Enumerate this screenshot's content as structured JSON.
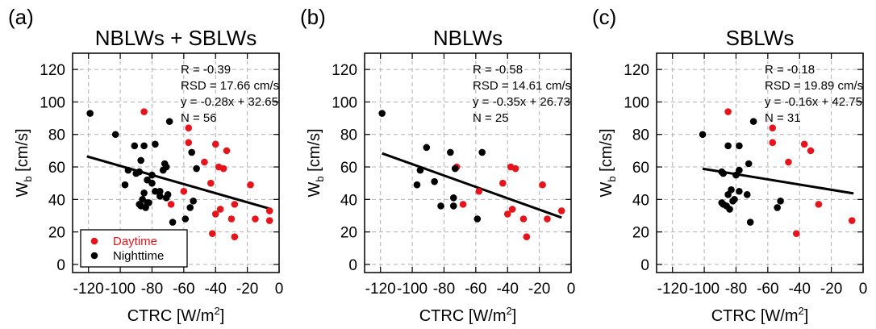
{
  "chart_data": [
    {
      "type": "scatter",
      "panel_label": "(a)",
      "title": "NBLWs + SBLWs",
      "xlabel_main": "CTRC [W/m",
      "xlabel_sup": "2",
      "xlabel_end": "]",
      "ylabel_main": "W",
      "ylabel_sub": "b",
      "ylabel_end": " [cm/s]",
      "xlim": [
        -130,
        0
      ],
      "ylim": [
        -5,
        130
      ],
      "xticks": [
        -120,
        -100,
        -80,
        -60,
        -40,
        -20,
        0
      ],
      "yticks": [
        0,
        20,
        40,
        60,
        80,
        100,
        120
      ],
      "grid": true,
      "stats": [
        "R = -0.39",
        "RSD = 17.66 cm/s",
        "y = -0.28x + 32.65",
        "N =  56"
      ],
      "fit": {
        "slope": -0.28,
        "intercept": 32.65,
        "x": [
          -121,
          -5
        ]
      },
      "legend": {
        "position": "bottom-left",
        "entries": [
          {
            "label": "Daytime",
            "color": "#e8141b"
          },
          {
            "label": "Nighttime",
            "color": "#000000"
          }
        ]
      },
      "series": [
        {
          "name": "Daytime",
          "color": "#e8141b",
          "points": [
            [
              -85,
              94
            ],
            [
              -57,
              84
            ],
            [
              -57,
              75
            ],
            [
              -40,
              74
            ],
            [
              -33,
              70
            ],
            [
              -38,
              60
            ],
            [
              -35,
              59
            ],
            [
              -47,
              63
            ],
            [
              -60,
              45
            ],
            [
              -43,
              50
            ],
            [
              -37,
              34
            ],
            [
              -40,
              31
            ],
            [
              -30,
              28
            ],
            [
              -28,
              37
            ],
            [
              -18,
              49
            ],
            [
              -15,
              28
            ],
            [
              -28,
              17
            ],
            [
              -42,
              19
            ],
            [
              -6,
              33
            ],
            [
              -6,
              27
            ],
            [
              -68,
              37
            ]
          ]
        },
        {
          "name": "Nighttime",
          "color": "#000000",
          "points": [
            [
              -119,
              93
            ],
            [
              -103,
              80
            ],
            [
              -91,
              73
            ],
            [
              -85,
              73
            ],
            [
              -78,
              74
            ],
            [
              -87,
              64
            ],
            [
              -72,
              62
            ],
            [
              -95,
              58
            ],
            [
              -88,
              57
            ],
            [
              -90,
              56
            ],
            [
              -80,
              55
            ],
            [
              -73,
              58
            ],
            [
              -71,
              60
            ],
            [
              -69,
              88
            ],
            [
              -55,
              69
            ],
            [
              -52,
              59
            ],
            [
              -97,
              49
            ],
            [
              -83,
              52
            ],
            [
              -78,
              45
            ],
            [
              -85,
              44
            ],
            [
              -86,
              40
            ],
            [
              -83,
              38
            ],
            [
              -87,
              36
            ],
            [
              -84,
              35
            ],
            [
              -82,
              38
            ],
            [
              -88,
              37
            ],
            [
              -75,
              42
            ],
            [
              -70,
              43
            ],
            [
              -71,
              41
            ],
            [
              -54,
              39
            ],
            [
              -56,
              35
            ],
            [
              -59,
              28
            ],
            [
              -67,
              26
            ],
            [
              -75,
              45
            ],
            [
              -80,
              50
            ]
          ]
        }
      ]
    },
    {
      "type": "scatter",
      "panel_label": "(b)",
      "title": "NBLWs",
      "xlabel_main": "CTRC [W/m",
      "xlabel_sup": "2",
      "xlabel_end": "]",
      "ylabel_main": "W",
      "ylabel_sub": "b",
      "ylabel_end": " [cm/s]",
      "xlim": [
        -130,
        0
      ],
      "ylim": [
        -5,
        130
      ],
      "xticks": [
        -120,
        -100,
        -80,
        -60,
        -40,
        -20,
        0
      ],
      "yticks": [
        0,
        20,
        40,
        60,
        80,
        100,
        120
      ],
      "grid": true,
      "stats": [
        "R = -0.58",
        "RSD = 14.61 cm/s",
        "y = -0.35x + 26.73",
        "N =  25"
      ],
      "fit": {
        "slope": -0.35,
        "intercept": 26.73,
        "x": [
          -119,
          -6
        ]
      },
      "series": [
        {
          "name": "Daytime",
          "color": "#e8141b",
          "points": [
            [
              -72,
              60
            ],
            [
              -58,
              45
            ],
            [
              -68,
              37
            ],
            [
              -43,
              50
            ],
            [
              -38,
              60
            ],
            [
              -35,
              59
            ],
            [
              -37,
              34
            ],
            [
              -40,
              31
            ],
            [
              -30,
              28
            ],
            [
              -28,
              17
            ],
            [
              -18,
              49
            ],
            [
              -15,
              28
            ],
            [
              -6,
              33
            ]
          ]
        },
        {
          "name": "Nighttime",
          "color": "#000000",
          "points": [
            [
              -119,
              93
            ],
            [
              -91,
              72
            ],
            [
              -76,
              69
            ],
            [
              -56,
              69
            ],
            [
              -95,
              58
            ],
            [
              -97,
              49
            ],
            [
              -86,
              51
            ],
            [
              -82,
              36
            ],
            [
              -74,
              41
            ],
            [
              -74,
              36
            ],
            [
              -73,
              59
            ],
            [
              -59,
              28
            ]
          ]
        }
      ]
    },
    {
      "type": "scatter",
      "panel_label": "(c)",
      "title": "SBLWs",
      "xlabel_main": "CTRC [W/m",
      "xlabel_sup": "2",
      "xlabel_end": "]",
      "ylabel_main": "W",
      "ylabel_sub": "b",
      "ylabel_end": " [cm/s]",
      "xlim": [
        -130,
        0
      ],
      "ylim": [
        -5,
        130
      ],
      "xticks": [
        -120,
        -100,
        -80,
        -60,
        -40,
        -20,
        0
      ],
      "yticks": [
        0,
        20,
        40,
        60,
        80,
        100,
        120
      ],
      "grid": true,
      "stats": [
        "R = -0.18",
        "RSD = 19.89 cm/s",
        "y = -0.16x + 42.75",
        "N =  31"
      ],
      "fit": {
        "slope": -0.16,
        "intercept": 42.75,
        "x": [
          -101,
          -6
        ]
      },
      "series": [
        {
          "name": "Daytime",
          "color": "#e8141b",
          "points": [
            [
              -85,
              94
            ],
            [
              -57,
              84
            ],
            [
              -57,
              75
            ],
            [
              -37,
              74
            ],
            [
              -33,
              70
            ],
            [
              -47,
              63
            ],
            [
              -28,
              37
            ],
            [
              -42,
              19
            ],
            [
              -7,
              27
            ]
          ]
        },
        {
          "name": "Nighttime",
          "color": "#000000",
          "points": [
            [
              -101,
              80
            ],
            [
              -85,
              73
            ],
            [
              -78,
              73
            ],
            [
              -89,
              57
            ],
            [
              -88,
              56
            ],
            [
              -80,
              55
            ],
            [
              -72,
              62
            ],
            [
              -69,
              88
            ],
            [
              -83,
              46
            ],
            [
              -85,
              43
            ],
            [
              -78,
              45
            ],
            [
              -73,
              43
            ],
            [
              -81,
              40
            ],
            [
              -88,
              37
            ],
            [
              -86,
              36
            ],
            [
              -84,
              34
            ],
            [
              -89,
              38
            ],
            [
              -52,
              39
            ],
            [
              -54,
              35
            ],
            [
              -71,
              26
            ],
            [
              -78,
              58
            ],
            [
              -82,
              39
            ]
          ]
        }
      ]
    }
  ]
}
